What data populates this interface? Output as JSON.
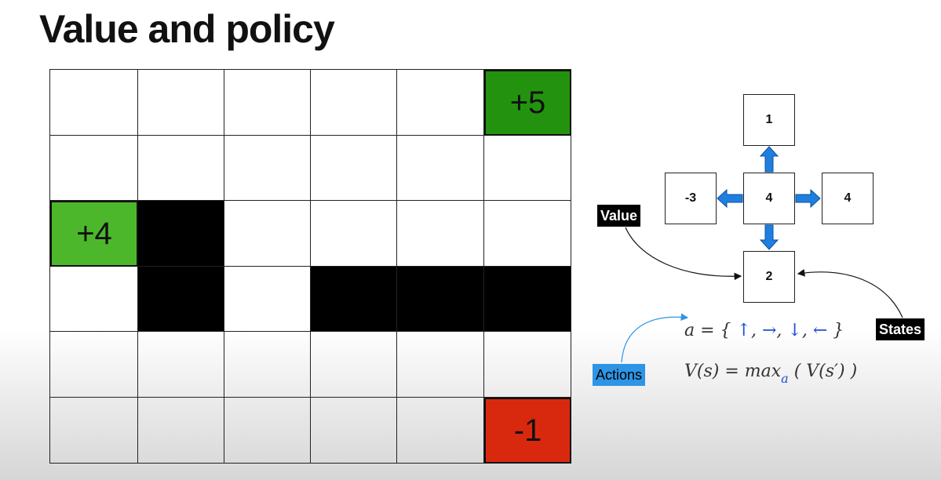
{
  "title": "Value and policy",
  "grid": {
    "rows": [
      [
        "",
        "",
        "",
        "",
        "",
        "+5"
      ],
      [
        "",
        "",
        "",
        "",
        "",
        ""
      ],
      [
        "+4",
        "",
        "",
        "",
        "",
        ""
      ],
      [
        "",
        "",
        "",
        "",
        "",
        ""
      ],
      [
        "",
        "",
        "",
        "",
        "",
        ""
      ],
      [
        "",
        "",
        "",
        "",
        "",
        "-1"
      ]
    ]
  },
  "states": {
    "top": "1",
    "left": "-3",
    "center": "4",
    "right": "4",
    "bottom": "2"
  },
  "labels": {
    "value": "Value",
    "states": "States",
    "actions": "Actions"
  },
  "formulas": {
    "actions_lhs": "a = {",
    "up": "↑",
    "right": "→",
    "down": "↓",
    "left": "←",
    "comma": ",",
    "close": "}",
    "value_lhs": "V(s) = max",
    "value_sub": "a",
    "value_rhs": "( V(s′) )"
  },
  "colors": {
    "plus5": "#23930f",
    "plus4": "#4cb72b",
    "minus1": "#d8290f",
    "arrow": "#1f7fe0",
    "actions_tag": "#2e95e6"
  }
}
